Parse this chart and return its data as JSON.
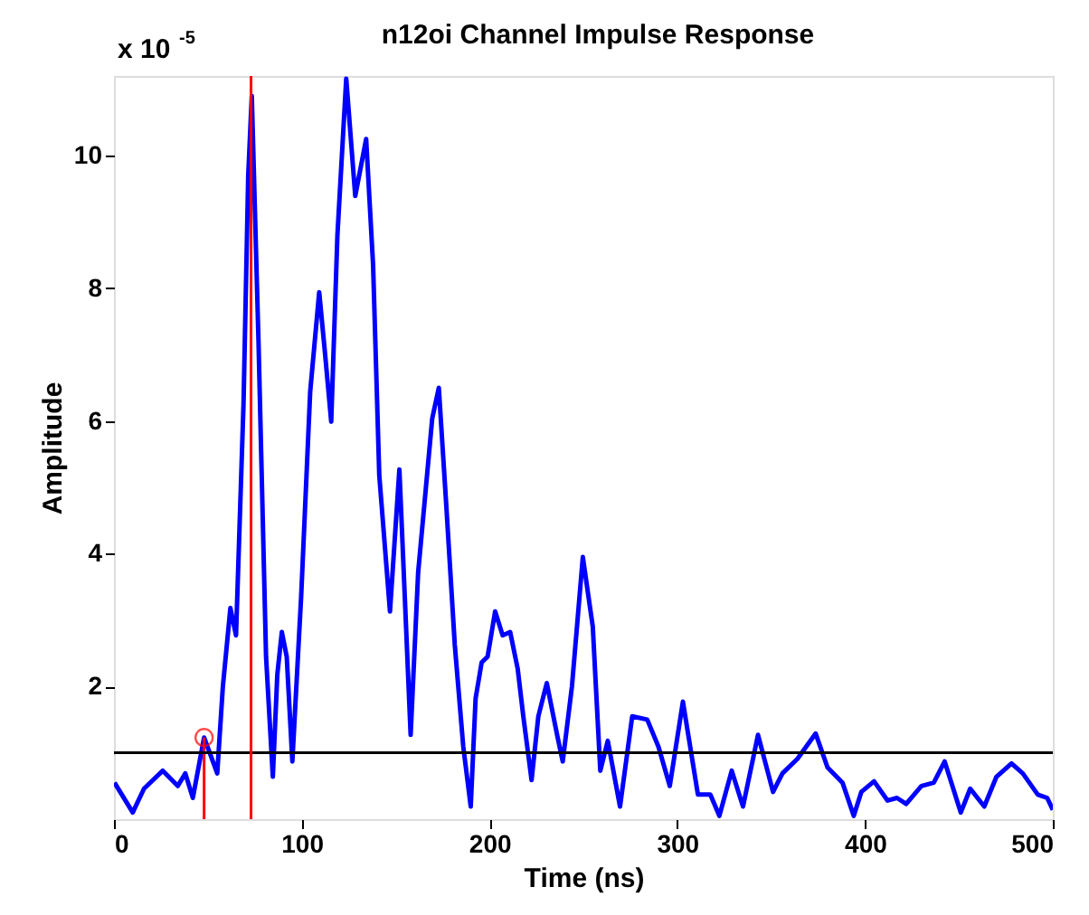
{
  "chart_data": {
    "type": "line",
    "title": "n12oi  Channel Impulse Response",
    "xlabel": "Time (ns)",
    "ylabel": "Amplitude",
    "annotations": [
      "x 10$^{-5}$"
    ],
    "xlim": [
      0,
      500
    ],
    "xticks": [
      0,
      100,
      200,
      300,
      400,
      500
    ],
    "ylim": [
      0,
      11.2
    ],
    "yticks": [
      2,
      4,
      6,
      8,
      10
    ],
    "series": [
      {
        "color": "#0000ff",
        "x": [
          0.3,
          10,
          16,
          26,
          34,
          38,
          42,
          48,
          55,
          58,
          62,
          65,
          69,
          71.5,
          73.4,
          77,
          81,
          84.6,
          87,
          89.4,
          92,
          95,
          99.7,
          104.5,
          109.3,
          112.5,
          115.7,
          119,
          123.7,
          128.5,
          134.3,
          138,
          141.3,
          147,
          152,
          158,
          162,
          169.5,
          173,
          177,
          181.5,
          186,
          190,
          192.6,
          195.8,
          199,
          203,
          207,
          211,
          215,
          218,
          222.4,
          226,
          230.5,
          236,
          239,
          243.9,
          249.7,
          255,
          259,
          263,
          269.5,
          276,
          284,
          290,
          296,
          303,
          311,
          317.6,
          322.4,
          329,
          335,
          343,
          351,
          356,
          364,
          373.7,
          380,
          388,
          394,
          398,
          404.8,
          412,
          417,
          421.9,
          430,
          436.6,
          442.4,
          451,
          456,
          463.5,
          470,
          478,
          484,
          492,
          497,
          500
        ],
        "values": [
          0.55,
          0.1,
          0.46,
          0.73,
          0.5,
          0.69,
          0.32,
          1.23,
          0.69,
          2.0,
          3.18,
          2.77,
          6.26,
          9.7,
          10.9,
          7.17,
          2.45,
          0.64,
          2.18,
          2.82,
          2.45,
          0.87,
          3.36,
          6.44,
          7.94,
          6.99,
          5.99,
          8.8,
          11.16,
          9.39,
          10.25,
          8.35,
          5.18,
          3.13,
          5.27,
          1.27,
          3.72,
          6.04,
          6.5,
          4.72,
          2.63,
          1.1,
          0.19,
          1.82,
          2.36,
          2.45,
          3.13,
          2.77,
          2.82,
          2.27,
          1.55,
          0.59,
          1.55,
          2.05,
          1.27,
          0.87,
          2.0,
          3.95,
          2.9,
          0.73,
          1.18,
          0.19,
          1.55,
          1.5,
          1.09,
          0.5,
          1.77,
          0.37,
          0.37,
          0.05,
          0.73,
          0.19,
          1.27,
          0.41,
          0.69,
          0.91,
          1.29,
          0.78,
          0.55,
          0.05,
          0.41,
          0.57,
          0.28,
          0.32,
          0.23,
          0.5,
          0.55,
          0.87,
          0.1,
          0.46,
          0.19,
          0.64,
          0.84,
          0.69,
          0.37,
          0.32,
          0.14
        ]
      },
      {
        "type": "lollipop",
        "color": "#ff0000",
        "marker": "circle",
        "x": [
          48
        ],
        "values": [
          1.23
        ]
      }
    ],
    "ref_lines": [
      {
        "axis": "y",
        "value": 1,
        "color": "#000000"
      },
      {
        "axis": "x",
        "value": 73,
        "color": "#ff0000"
      }
    ]
  }
}
